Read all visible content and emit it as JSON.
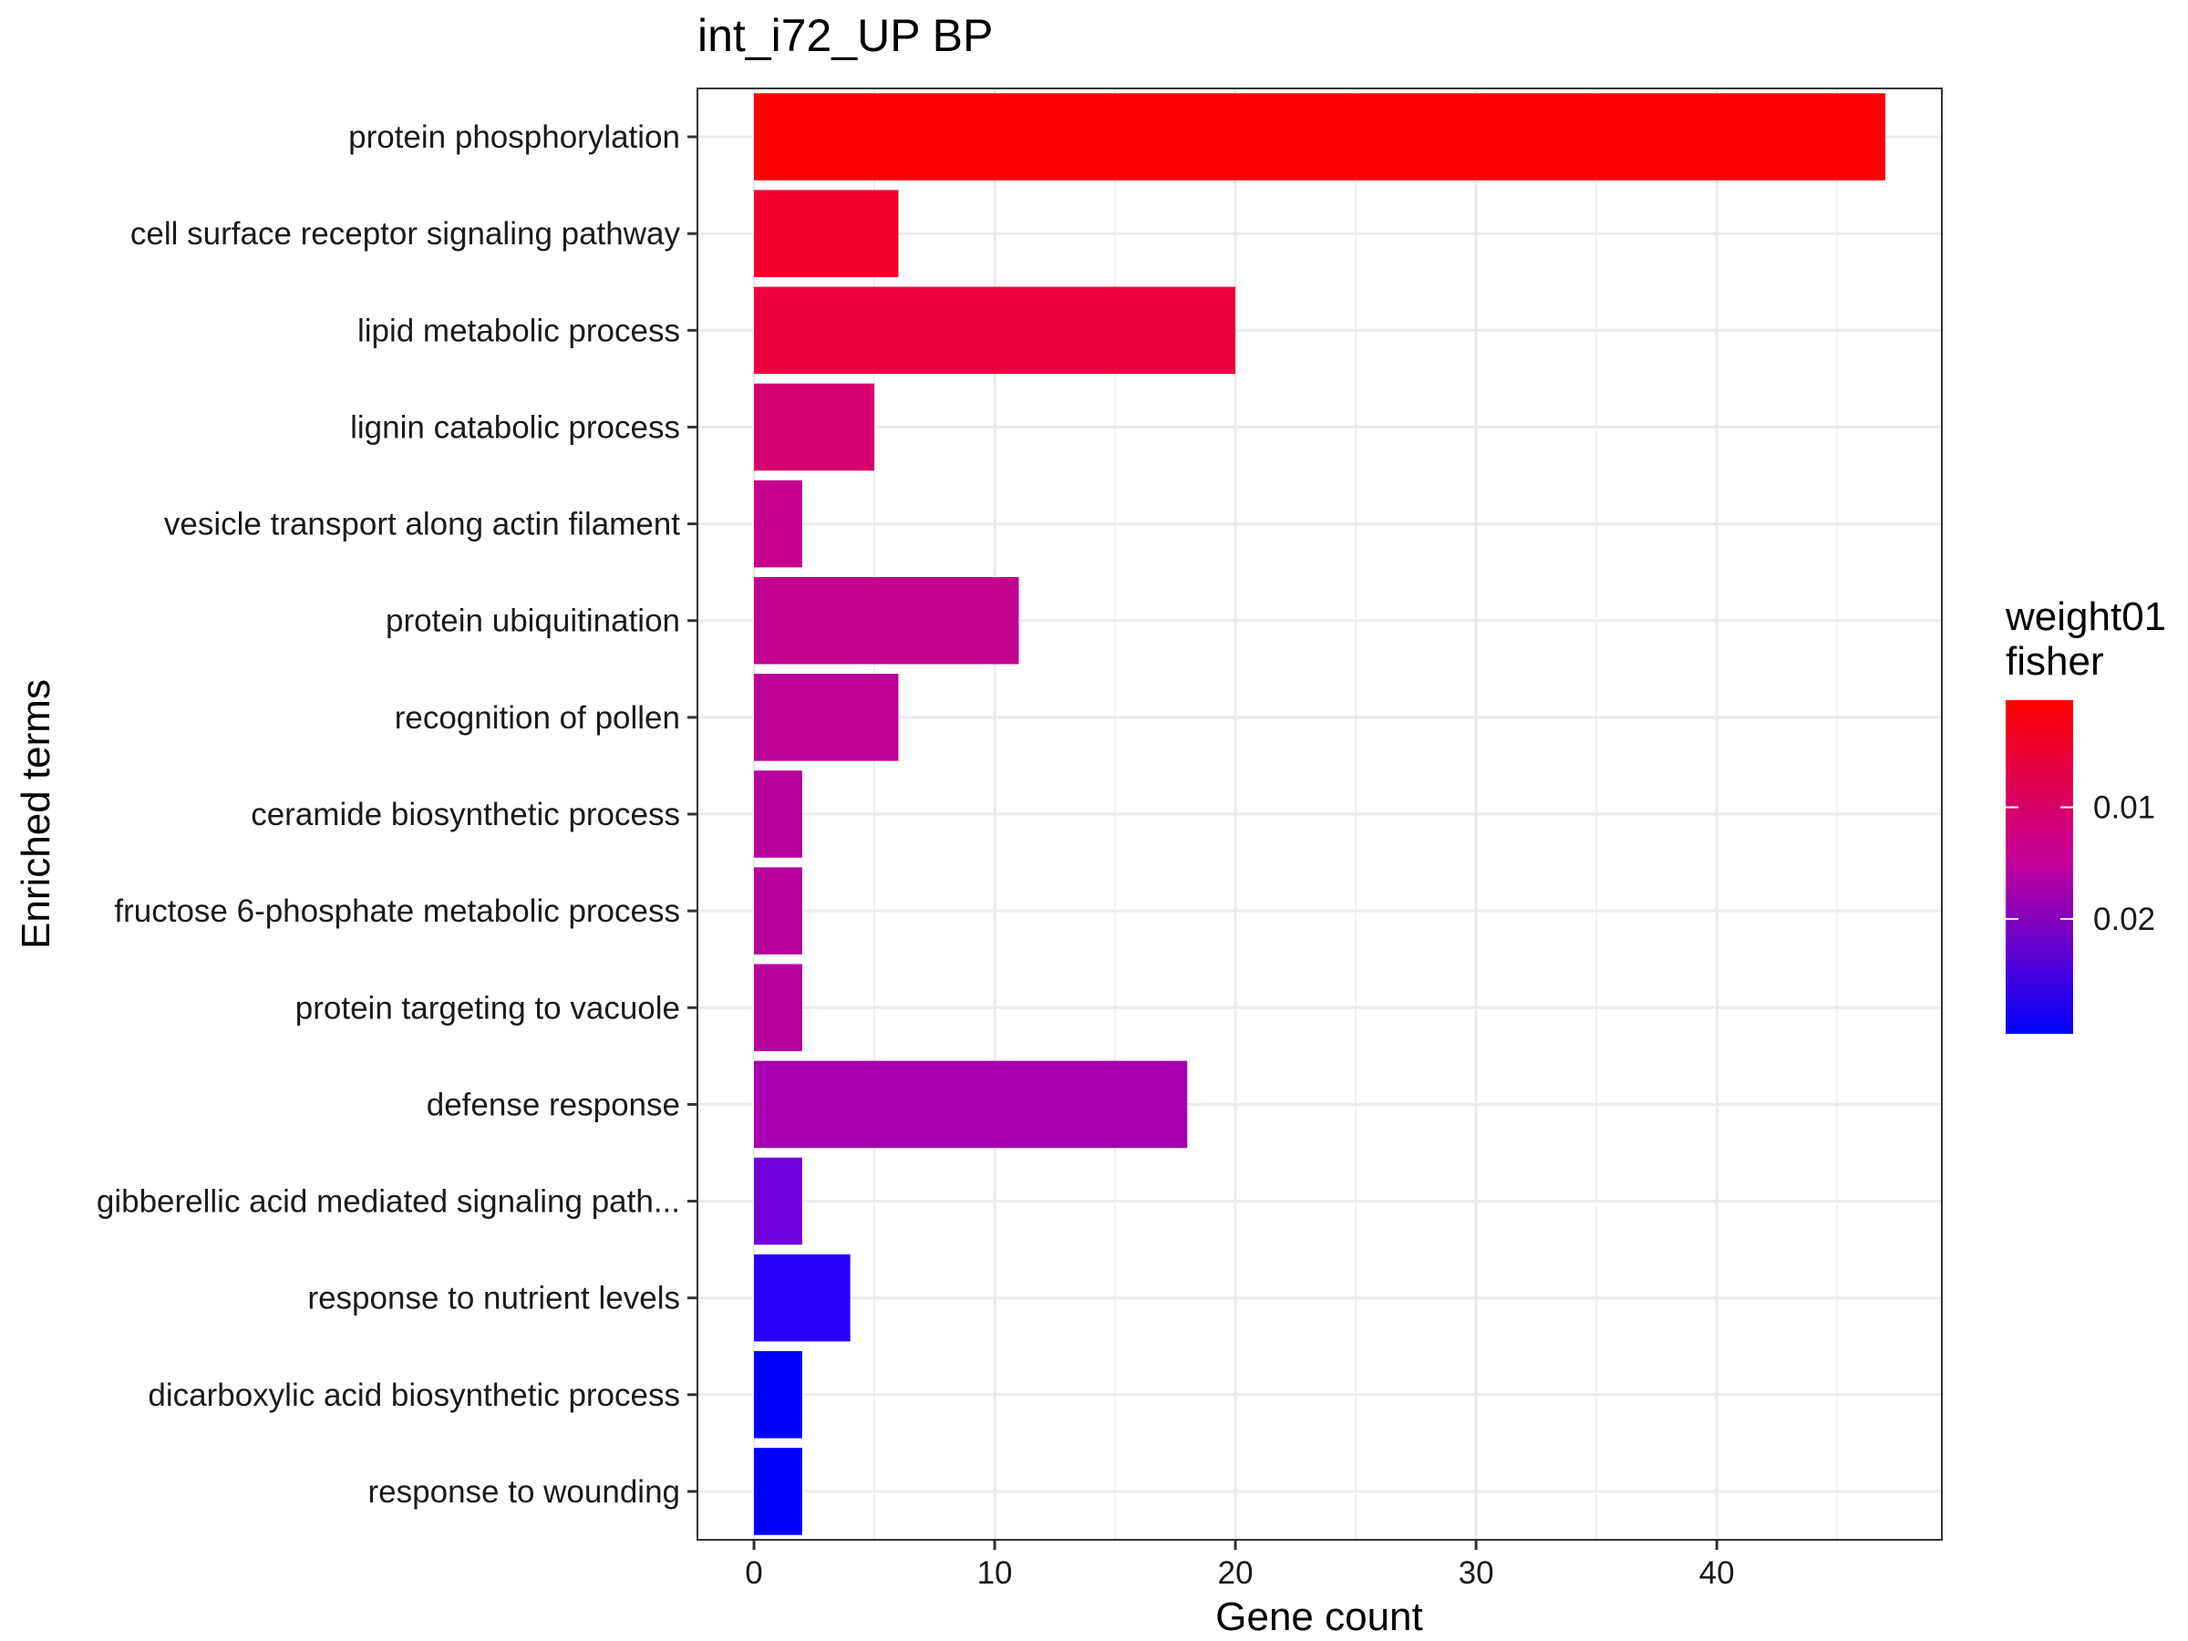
{
  "chart_data": {
    "type": "bar",
    "orientation": "horizontal",
    "title": "int_i72_UP BP",
    "xlabel": "Gene count",
    "ylabel": "Enriched terms",
    "xlim": [
      -2.35,
      49.35
    ],
    "x_ticks": [
      0,
      10,
      20,
      30,
      40
    ],
    "x_tick_labels": [
      "0",
      "10",
      "20",
      "30",
      "40"
    ],
    "grid": true,
    "categories": [
      "protein phosphorylation",
      "cell surface receptor signaling pathway",
      "lipid metabolic process",
      "lignin catabolic process",
      "vesicle transport along actin filament",
      "protein ubiquitination",
      "recognition of pollen",
      "ceramide biosynthetic process",
      "fructose 6-phosphate metabolic process",
      "protein targeting to vacuole",
      "defense response",
      "gibberellic acid mediated signaling path...",
      "response to nutrient levels",
      "dicarboxylic acid biosynthetic process",
      "response to wounding"
    ],
    "values": [
      47,
      6,
      20,
      5,
      2,
      11,
      6,
      2,
      2,
      2,
      18,
      2,
      4,
      2,
      2
    ],
    "colors": [
      "#ff0000",
      "#f5002d",
      "#ee003e",
      "#d4006f",
      "#c6008a",
      "#c1008f",
      "#bd0096",
      "#b7009c",
      "#b7009c",
      "#b7009c",
      "#a800b0",
      "#7000dc",
      "#2800f8",
      "#0000ff",
      "#0000ff"
    ],
    "legend": {
      "title_lines": [
        "weight01",
        "fisher"
      ],
      "position": "right",
      "gradient_top": "#ff0000",
      "gradient_mid": "#c000a0",
      "gradient_bottom": "#0000ff",
      "ticks": [
        {
          "label": "0.01",
          "value": 0.01
        },
        {
          "label": "0.02",
          "value": 0.02
        }
      ],
      "range": [
        0.0004,
        0.0303
      ]
    }
  }
}
